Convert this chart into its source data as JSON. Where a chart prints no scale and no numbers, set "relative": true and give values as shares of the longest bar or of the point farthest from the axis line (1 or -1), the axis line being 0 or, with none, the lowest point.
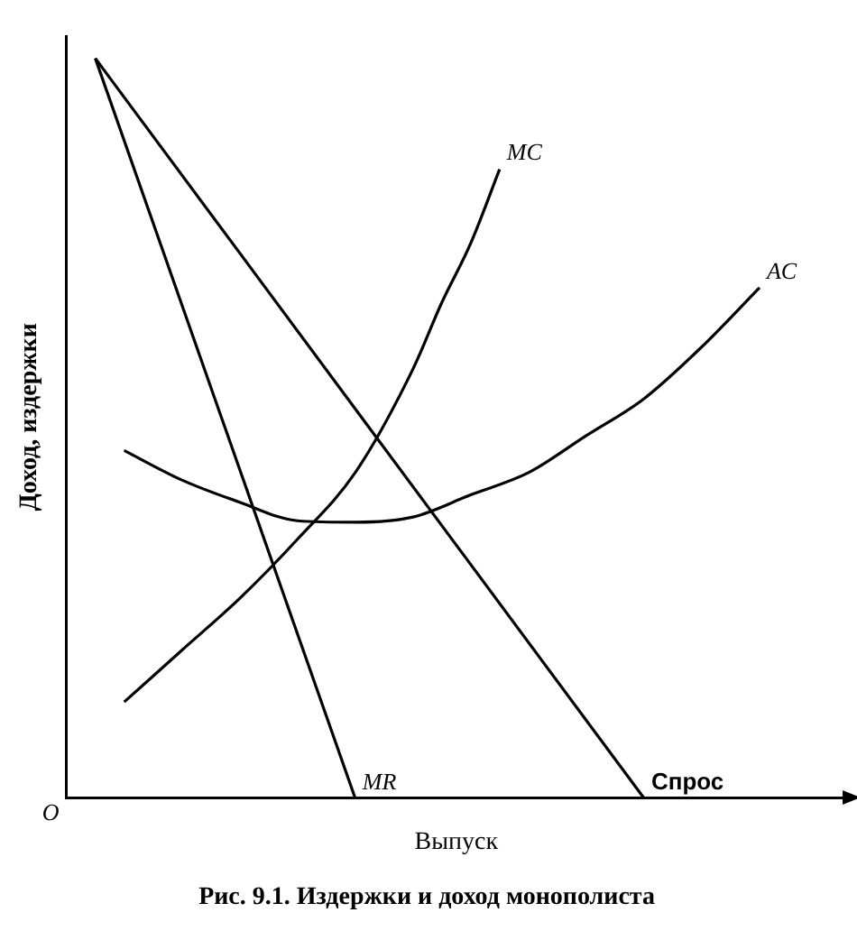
{
  "chart_data": {
    "type": "line",
    "title": "Рис. 9.1. Издержки и доход монополиста",
    "xlabel": "Выпуск",
    "ylabel": "Доход, издержки",
    "relative": true,
    "categories": [
      null,
      null,
      null,
      null,
      null,
      null,
      null,
      null,
      null,
      null,
      null,
      null,
      null,
      null,
      null,
      null,
      null,
      null,
      null,
      null,
      null,
      null,
      null,
      null,
      null,
      null,
      null,
      null
    ],
    "series": [
      {
        "name": "MC",
        "color": "#000000",
        "values": [
          null,
          null,
          0.13,
          null,
          0.2,
          null,
          0.27,
          null,
          0.35,
          null,
          0.44,
          null,
          0.58,
          0.67,
          0.75,
          0.85,
          null,
          null,
          null,
          null,
          null,
          null,
          null,
          null,
          null,
          null,
          null,
          null
        ]
      },
      {
        "name": "AC",
        "color": "#000000",
        "values": [
          null,
          null,
          0.47,
          null,
          0.43,
          null,
          0.4,
          null,
          0.375,
          null,
          0.373,
          null,
          0.38,
          null,
          0.41,
          null,
          0.44,
          null,
          0.49,
          null,
          0.54,
          null,
          0.61,
          null,
          0.69,
          null,
          null,
          null
        ]
      },
      {
        "name": "MR",
        "color": "#000000",
        "values": [
          null,
          1,
          null,
          null,
          null,
          null,
          null,
          null,
          null,
          null,
          0,
          null,
          null,
          null,
          null,
          null,
          null,
          null,
          null,
          null,
          null,
          null,
          null,
          null,
          null,
          null,
          null,
          null
        ]
      },
      {
        "name": "Спрос",
        "color": "#000000",
        "values": [
          null,
          1,
          null,
          null,
          null,
          null,
          null,
          null,
          null,
          null,
          null,
          null,
          null,
          null,
          null,
          null,
          null,
          null,
          null,
          null,
          0,
          null,
          null,
          null,
          null,
          null,
          null,
          null
        ]
      }
    ],
    "annotations": [
      {
        "text": "O"
      }
    ],
    "legend": false,
    "grid": false,
    "tick_labels": false,
    "marker": "none",
    "line_style": "solid"
  }
}
